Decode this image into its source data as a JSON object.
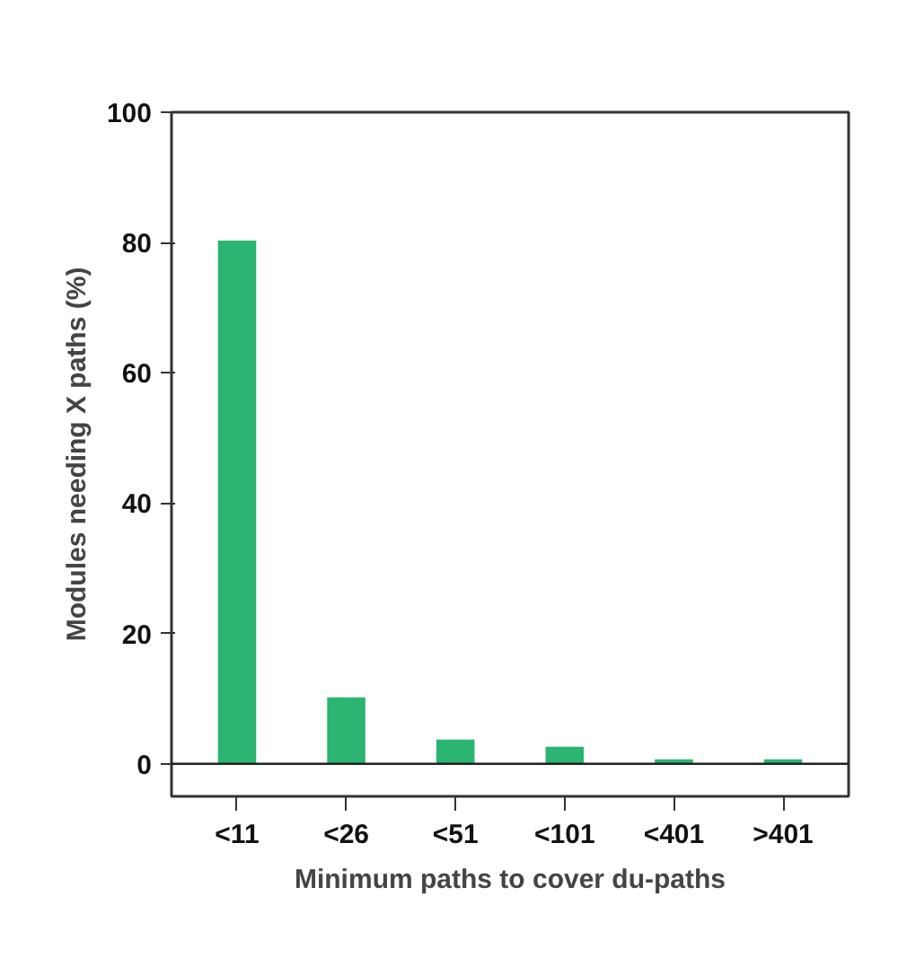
{
  "chart_data": {
    "type": "bar",
    "xlabel": "Minimum paths to cover du-paths",
    "ylabel": "Modules needing X paths (%)",
    "categories": [
      "<11",
      "<26",
      "<51",
      "<101",
      "<401",
      ">401"
    ],
    "values": [
      80.3,
      10.2,
      3.7,
      2.6,
      0.7,
      0.7
    ],
    "color": "#2bb570",
    "ylim": [
      -5,
      100
    ],
    "yticks": [
      0,
      20,
      40,
      60,
      80,
      100
    ],
    "ref_lines": [
      {
        "axis": "y",
        "value": 0,
        "label": null
      }
    ],
    "grid": false
  }
}
